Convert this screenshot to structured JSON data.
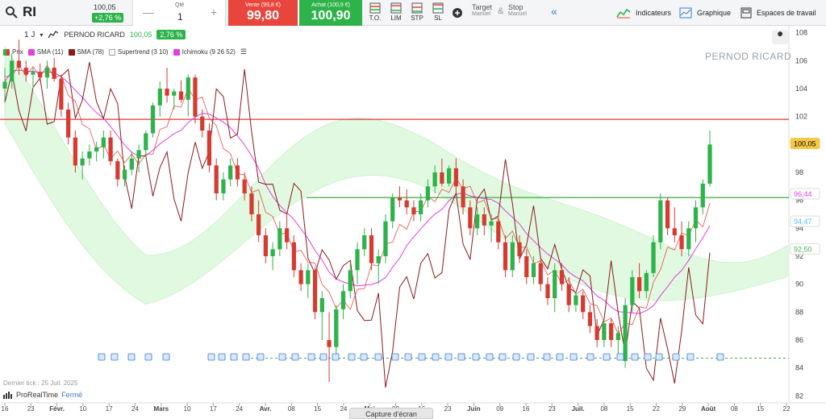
{
  "toolbar": {
    "symbol": "RI",
    "quote_price": "100,05",
    "quote_change": "+2,76 %",
    "qty_label": "Qté",
    "qty_value": "1",
    "sell_label": "Vente (99,8 €)",
    "sell_price": "99,80",
    "buy_label": "Achat (100,9 €)",
    "buy_price": "100,90",
    "orders": [
      "T.O.",
      "LIM",
      "STP",
      "SL"
    ],
    "target_label": "Target",
    "target_sub": "Manuel",
    "amp": "&",
    "stop_label": "Stop",
    "stop_sub": "Manuel",
    "indicators_label": "Indicateurs",
    "graphique_label": "Graphique",
    "workspace_label": "Espaces de travail"
  },
  "legend": {
    "timeframe": "1 J",
    "name": "PERNOD RICARD",
    "price": "100,05",
    "change": "2,76 %",
    "items": [
      "Prix",
      "SMA (11)",
      "SMA (78)",
      "Supertrend (3 10)",
      "Ichimoku (9 26 52)"
    ]
  },
  "watermark": "PERNOD RICARD",
  "footer": {
    "last_tick": "Dernier tick : 25 Juil. 2025",
    "brand": "ProRealTime",
    "status": "Fermé",
    "capture": "Capture d'écran"
  },
  "colors": {
    "up": "#2db34a",
    "down": "#d63b32",
    "sma11": "#e040e0",
    "sma78": "#8b1a1a",
    "supertrend": "#e53935",
    "cloud_green": "#c8f5c8",
    "hline_red": "#e53935",
    "hline_green": "#4caf50"
  },
  "chart_data": {
    "type": "candlestick",
    "ylim": [
      81.5,
      108.5
    ],
    "yticks": [
      82,
      84,
      86,
      88,
      90,
      92,
      94,
      96,
      98,
      100,
      102,
      104,
      106,
      108
    ],
    "xticks": [
      "16",
      "23",
      "Févr.",
      "10",
      "17",
      "24",
      "Mars",
      "10",
      "17",
      "24",
      "Avr.",
      "08",
      "15",
      "24",
      "Mai",
      "09",
      "16",
      "23",
      "Juin",
      "09",
      "16",
      "23",
      "Juil.",
      "08",
      "15",
      "22",
      "29",
      "Août",
      "08",
      "15",
      "22"
    ],
    "price_labels": [
      {
        "value": 100.05,
        "text": "100,05",
        "bg": "#f7c948",
        "fg": "#000"
      },
      {
        "value": 96.44,
        "text": "96,44",
        "bg": "#fff",
        "fg": "#e040e0"
      },
      {
        "value": 94.47,
        "text": "94,47",
        "bg": "#fff",
        "fg": "#4fc3f7"
      },
      {
        "value": 92.5,
        "text": "92,50",
        "bg": "#fff",
        "fg": "#4caf50"
      }
    ],
    "hlines": [
      {
        "value": 101.8,
        "color": "#e53935"
      },
      {
        "value": 96.2,
        "color": "#4caf50"
      },
      {
        "value": 84.7,
        "color": "#4caf50",
        "dashed": true
      }
    ],
    "candles": [
      [
        104.0,
        105.5,
        103.0,
        104.5
      ],
      [
        104.5,
        106.5,
        104.0,
        106.0
      ],
      [
        106.0,
        107.5,
        105.0,
        105.5
      ],
      [
        105.5,
        106.0,
        104.5,
        105.0
      ],
      [
        105.0,
        105.5,
        104.0,
        105.2
      ],
      [
        105.2,
        105.8,
        104.5,
        104.8
      ],
      [
        104.8,
        106.0,
        104.0,
        105.5
      ],
      [
        105.5,
        106.2,
        104.5,
        104.7
      ],
      [
        104.7,
        105.0,
        102.0,
        102.5
      ],
      [
        102.5,
        103.0,
        100.0,
        100.5
      ],
      [
        100.5,
        101.0,
        98.0,
        98.5
      ],
      [
        98.5,
        99.5,
        97.5,
        99.0
      ],
      [
        99.0,
        100.0,
        98.5,
        99.5
      ],
      [
        99.5,
        100.2,
        98.8,
        99.8
      ],
      [
        99.8,
        101.0,
        99.0,
        100.5
      ],
      [
        100.5,
        101.0,
        98.5,
        98.8
      ],
      [
        98.8,
        99.0,
        97.0,
        97.5
      ],
      [
        97.5,
        98.5,
        97.0,
        98.2
      ],
      [
        98.2,
        99.5,
        97.8,
        99.0
      ],
      [
        99.0,
        100.0,
        98.0,
        99.6
      ],
      [
        99.6,
        101.0,
        99.0,
        100.8
      ],
      [
        100.8,
        103.0,
        100.5,
        102.8
      ],
      [
        102.8,
        104.5,
        102.0,
        104.0
      ],
      [
        104.0,
        105.5,
        103.0,
        103.5
      ],
      [
        103.5,
        104.0,
        102.5,
        103.8
      ],
      [
        103.8,
        104.6,
        103.0,
        103.2
      ],
      [
        103.2,
        105.0,
        102.0,
        104.8
      ],
      [
        104.8,
        105.0,
        101.5,
        102.0
      ],
      [
        102.0,
        102.5,
        100.5,
        101.0
      ],
      [
        101.0,
        101.5,
        98.0,
        98.5
      ],
      [
        98.5,
        99.0,
        96.0,
        96.5
      ],
      [
        96.5,
        98.0,
        96.0,
        97.5
      ],
      [
        97.5,
        99.0,
        97.0,
        98.5
      ],
      [
        98.5,
        99.0,
        97.0,
        97.5
      ],
      [
        97.5,
        98.0,
        96.0,
        96.5
      ],
      [
        96.5,
        97.0,
        94.5,
        95.0
      ],
      [
        95.0,
        96.0,
        93.0,
        93.5
      ],
      [
        93.5,
        94.0,
        91.5,
        92.0
      ],
      [
        92.0,
        93.0,
        91.0,
        92.5
      ],
      [
        92.5,
        94.5,
        92.0,
        94.0
      ],
      [
        94.0,
        95.0,
        92.5,
        93.0
      ],
      [
        93.0,
        93.5,
        90.5,
        91.0
      ],
      [
        91.0,
        91.5,
        89.5,
        90.0
      ],
      [
        90.0,
        91.5,
        89.0,
        91.0
      ],
      [
        91.0,
        91.2,
        87.5,
        88.0
      ],
      [
        88.0,
        89.5,
        86.0,
        89.0
      ],
      [
        86.0,
        88.0,
        83.0,
        85.5
      ],
      [
        85.5,
        88.5,
        85.0,
        88.2
      ],
      [
        88.2,
        90.0,
        87.5,
        89.5
      ],
      [
        89.5,
        91.5,
        89.0,
        91.0
      ],
      [
        91.0,
        93.0,
        90.0,
        92.5
      ],
      [
        92.5,
        94.0,
        92.0,
        93.5
      ],
      [
        93.5,
        94.0,
        91.0,
        91.5
      ],
      [
        91.5,
        92.5,
        90.0,
        92.0
      ],
      [
        92.0,
        95.0,
        91.5,
        94.5
      ],
      [
        94.5,
        96.5,
        94.0,
        96.2
      ],
      [
        96.2,
        97.0,
        95.5,
        96.0
      ],
      [
        96.0,
        96.8,
        95.0,
        95.5
      ],
      [
        95.5,
        96.0,
        94.5,
        95.0
      ],
      [
        95.0,
        96.5,
        94.5,
        96.0
      ],
      [
        96.0,
        97.5,
        95.5,
        97.0
      ],
      [
        97.0,
        98.5,
        96.5,
        98.0
      ],
      [
        98.0,
        99.0,
        97.0,
        97.2
      ],
      [
        97.2,
        98.5,
        97.0,
        98.3
      ],
      [
        98.3,
        99.0,
        96.5,
        97.0
      ],
      [
        97.0,
        97.5,
        95.0,
        95.5
      ],
      [
        95.5,
        96.0,
        93.5,
        94.0
      ],
      [
        94.0,
        95.5,
        93.5,
        95.0
      ],
      [
        95.0,
        95.5,
        93.5,
        94.2
      ],
      [
        94.2,
        95.0,
        93.0,
        94.5
      ],
      [
        94.5,
        95.0,
        92.5,
        93.0
      ],
      [
        93.0,
        93.5,
        90.5,
        91.0
      ],
      [
        91.0,
        93.5,
        90.5,
        93.0
      ],
      [
        93.0,
        93.5,
        91.5,
        92.0
      ],
      [
        92.0,
        92.5,
        90.0,
        90.5
      ],
      [
        90.5,
        92.0,
        90.0,
        91.5
      ],
      [
        91.5,
        92.0,
        89.5,
        90.0
      ],
      [
        90.0,
        90.5,
        88.5,
        89.0
      ],
      [
        89.0,
        91.5,
        88.0,
        91.0
      ],
      [
        91.0,
        91.5,
        89.5,
        90.0
      ],
      [
        90.0,
        90.5,
        88.0,
        88.5
      ],
      [
        88.5,
        89.5,
        88.0,
        89.2
      ],
      [
        89.2,
        89.5,
        87.5,
        88.0
      ],
      [
        88.0,
        88.5,
        86.5,
        87.0
      ],
      [
        87.0,
        87.5,
        85.5,
        86.0
      ],
      [
        86.0,
        87.5,
        85.5,
        87.2
      ],
      [
        87.2,
        87.5,
        85.5,
        86.0
      ],
      [
        86.0,
        87.0,
        85.0,
        86.5
      ],
      [
        84.5,
        89.0,
        84.0,
        88.5
      ],
      [
        88.5,
        91.0,
        88.0,
        90.5
      ],
      [
        90.5,
        91.5,
        89.0,
        89.5
      ],
      [
        89.5,
        91.0,
        89.0,
        90.8
      ],
      [
        90.8,
        93.5,
        90.5,
        93.0
      ],
      [
        93.0,
        96.5,
        92.5,
        96.0
      ],
      [
        96.0,
        96.2,
        93.5,
        94.0
      ],
      [
        94.0,
        95.5,
        93.0,
        93.5
      ],
      [
        93.5,
        94.5,
        92.0,
        92.5
      ],
      [
        92.5,
        94.5,
        92.0,
        94.0
      ],
      [
        94.0,
        96.0,
        93.0,
        95.5
      ],
      [
        95.5,
        97.5,
        95.0,
        97.2
      ],
      [
        97.2,
        101.0,
        97.0,
        100.0
      ]
    ]
  }
}
